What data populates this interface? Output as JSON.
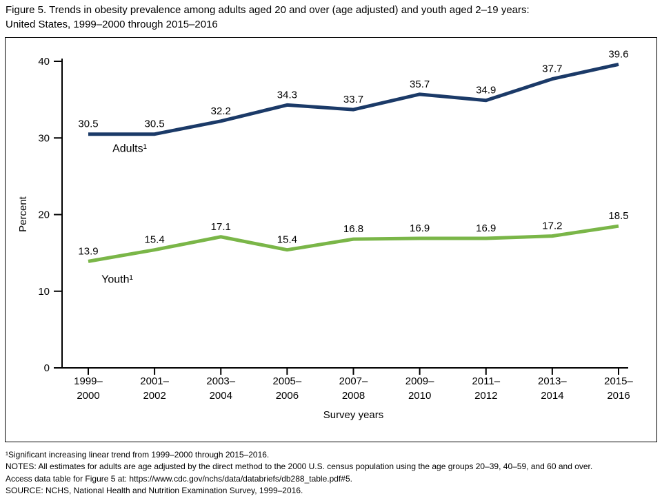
{
  "figure": {
    "title": "Figure 5. Trends in obesity prevalence among adults aged 20 and over (age adjusted) and youth aged 2–19 years:\nUnited States, 1999–2000 through 2015–2016",
    "footnotes": [
      "¹Significant increasing linear trend from 1999–2000 through 2015–2016.",
      "NOTES: All estimates for adults are age adjusted by the direct method to the 2000 U.S. census population using the age groups 20–39, 40–59, and 60 and over.",
      "Access data table for Figure 5 at: https://www.cdc.gov/nchs/data/databriefs/db288_table.pdf#5.",
      "SOURCE: NCHS, National Health and Nutrition Examination Survey, 1999–2016."
    ]
  },
  "chart_data": {
    "type": "line",
    "categories": [
      "1999–2000",
      "2001–2002",
      "2003–2004",
      "2005–2006",
      "2007–2008",
      "2009–2010",
      "2011–2012",
      "2013–2014",
      "2015–2016"
    ],
    "series": [
      {
        "name": "Adults¹",
        "color": "#1b3a68",
        "values": [
          30.5,
          30.5,
          32.2,
          34.3,
          33.7,
          35.7,
          34.9,
          37.7,
          39.6
        ]
      },
      {
        "name": "Youth¹",
        "color": "#7ab648",
        "values": [
          13.9,
          15.4,
          17.1,
          15.4,
          16.8,
          16.9,
          16.9,
          17.2,
          18.5
        ]
      }
    ],
    "xlabel": "Survey years",
    "ylabel": "Percent",
    "ylim": [
      0,
      40
    ],
    "yticks": [
      0,
      10,
      20,
      30,
      40
    ],
    "grid": false,
    "legend": "inline-labels"
  }
}
